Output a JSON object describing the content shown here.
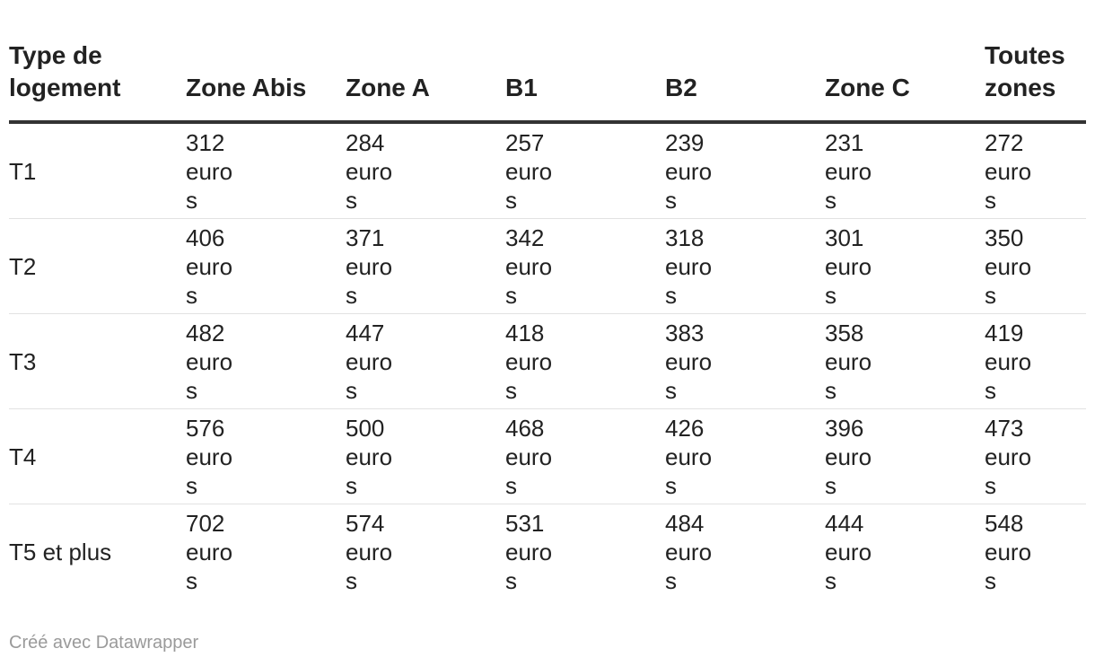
{
  "chart_data": {
    "type": "table",
    "columns": [
      "Type de logement",
      "Zone Abis",
      "Zone A",
      "B1",
      "B2",
      "Zone C",
      "Toutes zones"
    ],
    "rows": [
      {
        "label": "T1",
        "values": [
          "312 euros",
          "284 euros",
          "257 euros",
          "239 euros",
          "231 euros",
          "272 euros"
        ]
      },
      {
        "label": "T2",
        "values": [
          "406 euros",
          "371 euros",
          "342 euros",
          "318 euros",
          "301 euros",
          "350 euros"
        ]
      },
      {
        "label": "T3",
        "values": [
          "482 euros",
          "447 euros",
          "418 euros",
          "383 euros",
          "358 euros",
          "419 euros"
        ]
      },
      {
        "label": "T4",
        "values": [
          "576 euros",
          "500 euros",
          "468 euros",
          "426 euros",
          "396 euros",
          "473 euros"
        ]
      },
      {
        "label": "T5 et plus",
        "values": [
          "702 euros",
          "574 euros",
          "531 euros",
          "484 euros",
          "444 euros",
          "548 euros"
        ]
      }
    ]
  },
  "footer": {
    "credit": "Créé avec Datawrapper"
  },
  "colors": {
    "text": "#222222",
    "header_rule": "#333333",
    "row_rule": "#e2e2e2",
    "footer_text": "#9a9a9a"
  }
}
